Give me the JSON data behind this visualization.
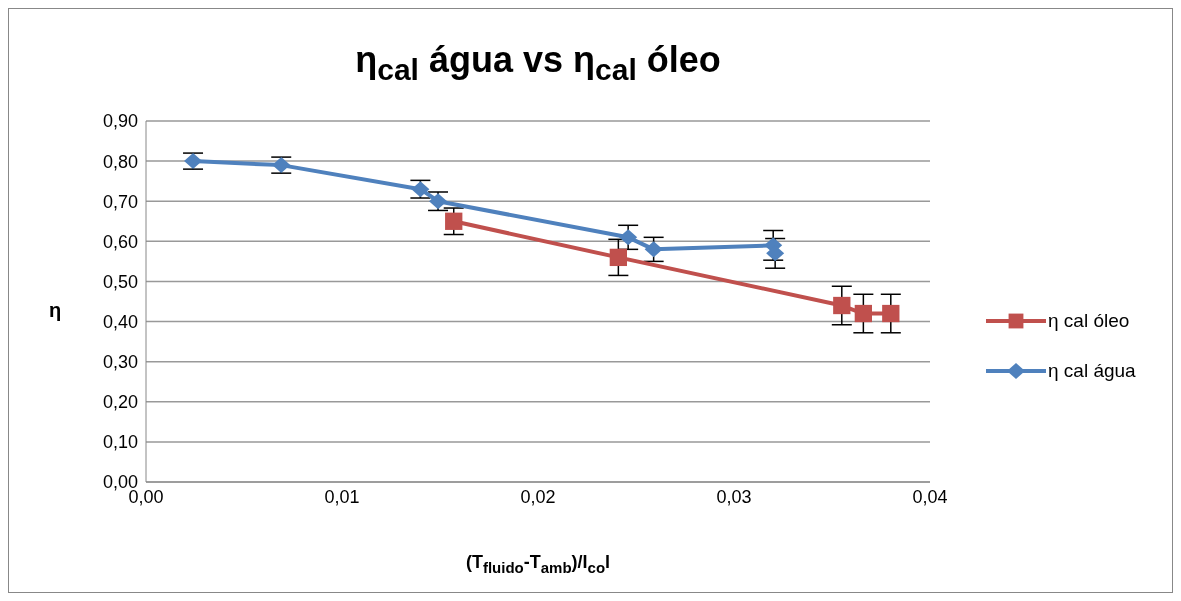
{
  "chart_data": {
    "type": "line",
    "title": "η$_{cal}$ água vs η$_{cal}$ óleo",
    "xlabel": "(T$_{fluido}$-T$_{amb}$)/I$_{co}$l",
    "ylabel": "η",
    "series": [
      {
        "name": "η cal óleo",
        "color": "#c0504d",
        "marker": "square",
        "x": [
          0.0157,
          0.0241,
          0.0355,
          0.0366,
          0.038
        ],
        "values": [
          0.65,
          0.56,
          0.44,
          0.42,
          0.42
        ],
        "errors": [
          0.033,
          0.045,
          0.048,
          0.048,
          0.048
        ]
      },
      {
        "name": "η cal água",
        "color": "#4f81bd",
        "marker": "diamond",
        "x": [
          0.0024,
          0.0069,
          0.014,
          0.0149,
          0.0246,
          0.0259,
          0.032,
          0.0321
        ],
        "values": [
          0.8,
          0.79,
          0.73,
          0.7,
          0.61,
          0.58,
          0.59,
          0.57
        ],
        "errors": [
          0.02,
          0.02,
          0.022,
          0.023,
          0.03,
          0.03,
          0.037,
          0.037
        ]
      }
    ],
    "xlim": [
      0,
      0.04
    ],
    "xticks": [
      {
        "value": 0,
        "label": "0,00"
      },
      {
        "value": 0.01,
        "label": "0,01"
      },
      {
        "value": 0.02,
        "label": "0,02"
      },
      {
        "value": 0.03,
        "label": "0,03"
      },
      {
        "value": 0.04,
        "label": "0,04"
      }
    ],
    "ylim": [
      0,
      0.9
    ],
    "yticks": [
      {
        "value": 0,
        "label": "0,00"
      },
      {
        "value": 0.1,
        "label": "0,10"
      },
      {
        "value": 0.2,
        "label": "0,20"
      },
      {
        "value": 0.3,
        "label": "0,30"
      },
      {
        "value": 0.4,
        "label": "0,40"
      },
      {
        "value": 0.5,
        "label": "0,50"
      },
      {
        "value": 0.6,
        "label": "0,60"
      },
      {
        "value": 0.7,
        "label": "0,70"
      },
      {
        "value": 0.8,
        "label": "0,80"
      },
      {
        "value": 0.9,
        "label": "0,90"
      }
    ],
    "grid": "y",
    "legend": "right",
    "line_style": "solid"
  }
}
